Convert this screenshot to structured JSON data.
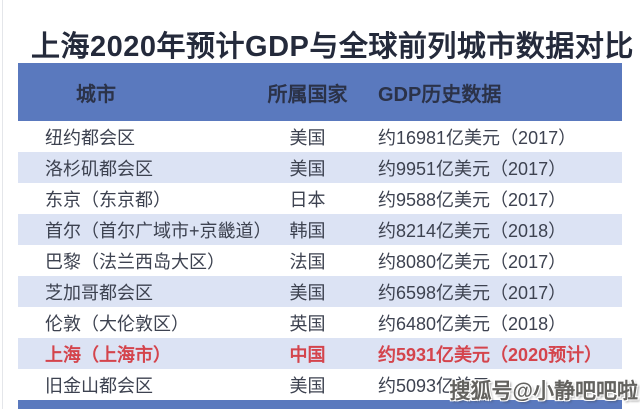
{
  "title": "上海2020年预计GDP与全球前列城市数据对比",
  "table": {
    "columns": [
      "城市",
      "所属国家",
      "GDP历史数据"
    ],
    "rows": [
      {
        "city": "纽约都会区",
        "country": "美国",
        "gdp": "约16981亿美元（2017）",
        "highlight": false
      },
      {
        "city": "洛杉矶都会区",
        "country": "美国",
        "gdp": "约9951亿美元（2017）",
        "highlight": false
      },
      {
        "city": "东京（东京都）",
        "country": "日本",
        "gdp": "约9588亿美元（2017）",
        "highlight": false
      },
      {
        "city": "首尔（首尔广域市+京畿道）",
        "country": "韩国",
        "gdp": "约8214亿美元（2018）",
        "highlight": false
      },
      {
        "city": "巴黎（法兰西岛大区）",
        "country": "法国",
        "gdp": "约8080亿美元（2017）",
        "highlight": false
      },
      {
        "city": "芝加哥都会区",
        "country": "美国",
        "gdp": "约6598亿美元（2017）",
        "highlight": false
      },
      {
        "city": "伦敦（大伦敦区）",
        "country": "英国",
        "gdp": "约6480亿美元（2018）",
        "highlight": false
      },
      {
        "city": "上海（上海市）",
        "country": "中国",
        "gdp": "约5931亿美元（2020预计）",
        "highlight": true
      },
      {
        "city": "旧金山都会区",
        "country": "美国",
        "gdp": "约5093亿美元",
        "highlight": false
      }
    ]
  },
  "watermark": "搜狐号@小静吧吧啦",
  "colors": {
    "header_blue": "#5a79be",
    "row_alt_blue": "#dce3f4",
    "highlight_red": "#d4444c",
    "title_navy": "#242a3b",
    "body_text": "#3d4250"
  },
  "chart_data": {
    "type": "table",
    "title": "上海2020年预计GDP与全球前列城市数据对比",
    "columns": [
      "城市",
      "所属国家",
      "GDP历史数据"
    ],
    "rows": [
      [
        "纽约都会区",
        "美国",
        "约16981亿美元（2017）"
      ],
      [
        "洛杉矶都会区",
        "美国",
        "约9951亿美元（2017）"
      ],
      [
        "东京（东京都）",
        "日本",
        "约9588亿美元（2017）"
      ],
      [
        "首尔（首尔广域市+京畿道）",
        "韩国",
        "约8214亿美元（2018）"
      ],
      [
        "巴黎（法兰西岛大区）",
        "法国",
        "约8080亿美元（2017）"
      ],
      [
        "芝加哥都会区",
        "美国",
        "约6598亿美元（2017）"
      ],
      [
        "伦敦（大伦敦区）",
        "英国",
        "约6480亿美元（2018）"
      ],
      [
        "上海（上海市）",
        "中国",
        "约5931亿美元（2020预计）"
      ],
      [
        "旧金山都会区",
        "美国",
        "约5093亿美元"
      ]
    ],
    "gdp_values_billion_usd": [
      16981,
      9951,
      9588,
      8214,
      8080,
      6598,
      6480,
      5931,
      5093
    ],
    "highlight_row": "上海（上海市）"
  }
}
